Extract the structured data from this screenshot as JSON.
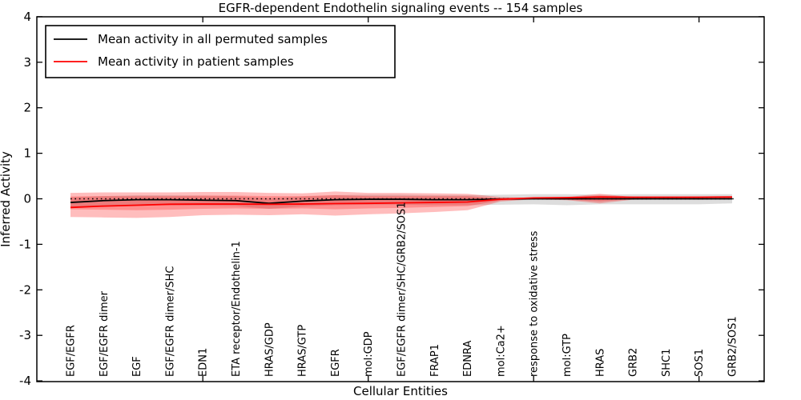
{
  "legend": {
    "position": "upper left",
    "items": [
      {
        "label": "Mean activity in all permuted samples",
        "color": "#000000"
      },
      {
        "label": "Mean activity in patient samples",
        "color": "#ff0000"
      }
    ]
  },
  "chart_data": {
    "type": "line",
    "title": "EGFR-dependent Endothelin signaling events -- 154 samples",
    "xlabel": "Cellular Entities",
    "ylabel": "Inferred Activity",
    "ylim": [
      -4,
      4
    ],
    "yticks": [
      -4,
      -3,
      -2,
      -1,
      0,
      1,
      2,
      3,
      4
    ],
    "xtick_positions": [
      5,
      10,
      15,
      20
    ],
    "grid": false,
    "legend_position": "upper left",
    "zero_line": {
      "y": 0,
      "style": "dotted",
      "color": "#000000"
    },
    "categories": [
      "EGF/EGFR",
      "EGF/EGFR dimer",
      "EGF",
      "EGF/EGFR dimer/SHC",
      "EDN1",
      "ETA receptor/Endothelin-1",
      "HRAS/GDP",
      "HRAS/GTP",
      "EGFR",
      "mol:GDP",
      "EGF/EGFR dimer/SHC/GRB2/SOS1",
      "FRAP1",
      "EDNRA",
      "mol:Ca2+",
      "response to oxidative stress",
      "mol:GTP",
      "HRAS",
      "GRB2",
      "SHC1",
      "SOS1",
      "GRB2/SOS1"
    ],
    "series": [
      {
        "name": "Mean activity in all permuted samples",
        "color": "#000000",
        "values": [
          -0.08,
          -0.04,
          -0.02,
          -0.02,
          -0.03,
          -0.04,
          -0.1,
          -0.05,
          -0.02,
          -0.01,
          -0.01,
          -0.02,
          -0.02,
          -0.005,
          0,
          0,
          0,
          0,
          0,
          0,
          0
        ]
      },
      {
        "name": "Mean activity in patient samples",
        "color": "#ff0000",
        "values": [
          -0.19,
          -0.16,
          -0.14,
          -0.12,
          -0.115,
          -0.115,
          -0.12,
          -0.115,
          -0.105,
          -0.1,
          -0.09,
          -0.08,
          -0.07,
          -0.01,
          0.02,
          0.025,
          0.04,
          0.035,
          0.035,
          0.035,
          0.04
        ]
      }
    ],
    "bands": [
      {
        "name": "permuted-samples-std-band",
        "color": "rgba(100,100,100,0.22)",
        "upper": [
          0.03,
          0.06,
          0.08,
          0.08,
          0.07,
          0.06,
          0.01,
          0.05,
          0.08,
          0.09,
          0.09,
          0.08,
          0.08,
          0.09,
          0.1,
          0.1,
          0.09,
          0.1,
          0.1,
          0.1,
          0.1
        ],
        "lower": [
          -0.2,
          -0.16,
          -0.14,
          -0.14,
          -0.15,
          -0.16,
          -0.22,
          -0.17,
          -0.14,
          -0.13,
          -0.13,
          -0.14,
          -0.14,
          -0.13,
          -0.12,
          -0.14,
          -0.12,
          -0.12,
          -0.12,
          -0.12,
          -0.1
        ]
      },
      {
        "name": "patient-samples-outer-band",
        "color": "rgba(255,0,0,0.26)",
        "upper": [
          0.13,
          0.14,
          0.14,
          0.14,
          0.15,
          0.15,
          0.13,
          0.12,
          0.16,
          0.13,
          0.13,
          0.12,
          0.11,
          0.04,
          0.02,
          0.04,
          0.11,
          0.04,
          0.04,
          0.05,
          0.06
        ],
        "lower": [
          -0.4,
          -0.41,
          -0.42,
          -0.4,
          -0.36,
          -0.35,
          -0.36,
          -0.34,
          -0.37,
          -0.34,
          -0.32,
          -0.29,
          -0.25,
          -0.06,
          -0.01,
          -0.03,
          -0.1,
          -0.02,
          -0.01,
          -0.02,
          -0.01
        ]
      },
      {
        "name": "patient-samples-inner-band",
        "color": "rgba(255,0,0,0.24)",
        "upper": [
          0.05,
          0.06,
          0.06,
          0.06,
          0.07,
          0.07,
          0.06,
          0.06,
          0.08,
          0.06,
          0.06,
          0.06,
          0.06,
          0.01,
          0.01,
          0.02,
          0.07,
          0.02,
          0.02,
          0.02,
          0.03
        ],
        "lower": [
          -0.23,
          -0.24,
          -0.25,
          -0.24,
          -0.22,
          -0.21,
          -0.22,
          -0.21,
          -0.23,
          -0.21,
          -0.2,
          -0.18,
          -0.16,
          -0.04,
          -0.01,
          -0.02,
          -0.06,
          -0.01,
          -0.01,
          -0.01,
          0.0
        ]
      }
    ]
  }
}
